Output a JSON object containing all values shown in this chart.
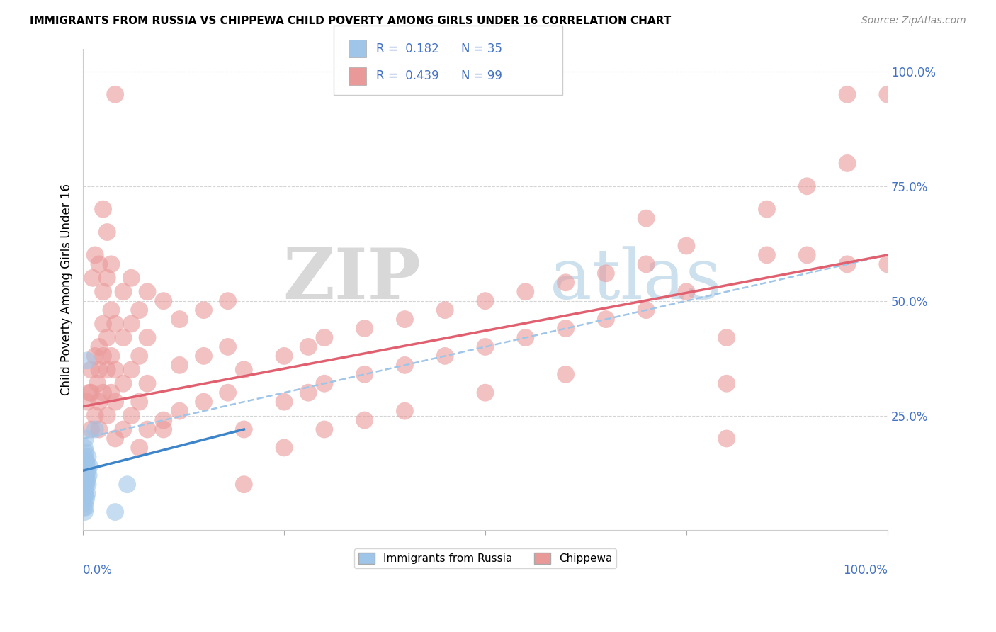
{
  "title": "IMMIGRANTS FROM RUSSIA VS CHIPPEWA CHILD POVERTY AMONG GIRLS UNDER 16 CORRELATION CHART",
  "source": "Source: ZipAtlas.com",
  "ylabel": "Child Poverty Among Girls Under 16",
  "ytick_labels": [
    "100.0%",
    "75.0%",
    "50.0%",
    "25.0%"
  ],
  "ytick_values": [
    1.0,
    0.75,
    0.5,
    0.25
  ],
  "watermark_zip": "ZIP",
  "watermark_atlas": "atlas",
  "blue_color": "#9fc5e8",
  "pink_color": "#ea9999",
  "blue_line_color": "#3d85c8",
  "pink_line_color": "#e06070",
  "dashed_line_color": "#9fc5e8",
  "blue_scatter": [
    [
      0.001,
      0.05
    ],
    [
      0.001,
      0.07
    ],
    [
      0.001,
      0.08
    ],
    [
      0.001,
      0.1
    ],
    [
      0.002,
      0.04
    ],
    [
      0.002,
      0.06
    ],
    [
      0.002,
      0.08
    ],
    [
      0.002,
      0.1
    ],
    [
      0.002,
      0.12
    ],
    [
      0.002,
      0.14
    ],
    [
      0.002,
      0.16
    ],
    [
      0.002,
      0.18
    ],
    [
      0.003,
      0.05
    ],
    [
      0.003,
      0.08
    ],
    [
      0.003,
      0.1
    ],
    [
      0.003,
      0.12
    ],
    [
      0.003,
      0.15
    ],
    [
      0.003,
      0.17
    ],
    [
      0.003,
      0.2
    ],
    [
      0.004,
      0.07
    ],
    [
      0.004,
      0.1
    ],
    [
      0.004,
      0.12
    ],
    [
      0.004,
      0.15
    ],
    [
      0.005,
      0.08
    ],
    [
      0.005,
      0.11
    ],
    [
      0.005,
      0.14
    ],
    [
      0.005,
      0.37
    ],
    [
      0.006,
      0.1
    ],
    [
      0.006,
      0.13
    ],
    [
      0.006,
      0.16
    ],
    [
      0.007,
      0.12
    ],
    [
      0.008,
      0.14
    ],
    [
      0.015,
      0.22
    ],
    [
      0.04,
      0.04
    ],
    [
      0.055,
      0.1
    ]
  ],
  "pink_scatter": [
    [
      0.005,
      0.28
    ],
    [
      0.008,
      0.3
    ],
    [
      0.01,
      0.22
    ],
    [
      0.01,
      0.3
    ],
    [
      0.01,
      0.35
    ],
    [
      0.012,
      0.55
    ],
    [
      0.015,
      0.25
    ],
    [
      0.015,
      0.38
    ],
    [
      0.015,
      0.6
    ],
    [
      0.018,
      0.32
    ],
    [
      0.02,
      0.22
    ],
    [
      0.02,
      0.28
    ],
    [
      0.02,
      0.35
    ],
    [
      0.02,
      0.4
    ],
    [
      0.02,
      0.58
    ],
    [
      0.025,
      0.3
    ],
    [
      0.025,
      0.38
    ],
    [
      0.025,
      0.45
    ],
    [
      0.025,
      0.52
    ],
    [
      0.025,
      0.7
    ],
    [
      0.03,
      0.25
    ],
    [
      0.03,
      0.35
    ],
    [
      0.03,
      0.42
    ],
    [
      0.03,
      0.55
    ],
    [
      0.03,
      0.65
    ],
    [
      0.035,
      0.3
    ],
    [
      0.035,
      0.38
    ],
    [
      0.035,
      0.48
    ],
    [
      0.035,
      0.58
    ],
    [
      0.04,
      0.2
    ],
    [
      0.04,
      0.28
    ],
    [
      0.04,
      0.35
    ],
    [
      0.04,
      0.45
    ],
    [
      0.04,
      0.95
    ],
    [
      0.05,
      0.22
    ],
    [
      0.05,
      0.32
    ],
    [
      0.05,
      0.42
    ],
    [
      0.05,
      0.52
    ],
    [
      0.06,
      0.25
    ],
    [
      0.06,
      0.35
    ],
    [
      0.06,
      0.45
    ],
    [
      0.06,
      0.55
    ],
    [
      0.07,
      0.18
    ],
    [
      0.07,
      0.28
    ],
    [
      0.07,
      0.38
    ],
    [
      0.07,
      0.48
    ],
    [
      0.08,
      0.22
    ],
    [
      0.08,
      0.32
    ],
    [
      0.08,
      0.42
    ],
    [
      0.08,
      0.52
    ],
    [
      0.1,
      0.24
    ],
    [
      0.1,
      0.22
    ],
    [
      0.1,
      0.5
    ],
    [
      0.12,
      0.26
    ],
    [
      0.12,
      0.36
    ],
    [
      0.12,
      0.46
    ],
    [
      0.15,
      0.28
    ],
    [
      0.15,
      0.38
    ],
    [
      0.15,
      0.48
    ],
    [
      0.18,
      0.3
    ],
    [
      0.18,
      0.4
    ],
    [
      0.18,
      0.5
    ],
    [
      0.2,
      0.35
    ],
    [
      0.2,
      0.22
    ],
    [
      0.2,
      0.1
    ],
    [
      0.25,
      0.38
    ],
    [
      0.25,
      0.28
    ],
    [
      0.25,
      0.18
    ],
    [
      0.28,
      0.4
    ],
    [
      0.28,
      0.3
    ],
    [
      0.3,
      0.42
    ],
    [
      0.3,
      0.32
    ],
    [
      0.3,
      0.22
    ],
    [
      0.35,
      0.44
    ],
    [
      0.35,
      0.34
    ],
    [
      0.35,
      0.24
    ],
    [
      0.4,
      0.46
    ],
    [
      0.4,
      0.36
    ],
    [
      0.4,
      0.26
    ],
    [
      0.45,
      0.48
    ],
    [
      0.45,
      0.38
    ],
    [
      0.5,
      0.5
    ],
    [
      0.5,
      0.4
    ],
    [
      0.5,
      0.3
    ],
    [
      0.55,
      0.52
    ],
    [
      0.55,
      0.42
    ],
    [
      0.6,
      0.54
    ],
    [
      0.6,
      0.44
    ],
    [
      0.6,
      0.34
    ],
    [
      0.65,
      0.56
    ],
    [
      0.65,
      0.46
    ],
    [
      0.7,
      0.68
    ],
    [
      0.7,
      0.58
    ],
    [
      0.7,
      0.48
    ],
    [
      0.75,
      0.62
    ],
    [
      0.75,
      0.52
    ],
    [
      0.8,
      0.2
    ],
    [
      0.8,
      0.32
    ],
    [
      0.8,
      0.42
    ],
    [
      0.85,
      0.7
    ],
    [
      0.85,
      0.6
    ],
    [
      0.9,
      0.75
    ],
    [
      0.9,
      0.6
    ],
    [
      0.95,
      0.8
    ],
    [
      0.95,
      0.95
    ],
    [
      0.95,
      0.58
    ],
    [
      1.0,
      0.58
    ],
    [
      1.0,
      0.95
    ]
  ],
  "pink_line_x0": 0.0,
  "pink_line_y0": 0.27,
  "pink_line_x1": 1.0,
  "pink_line_y1": 0.6,
  "blue_line_x0": 0.0,
  "blue_line_y0": 0.13,
  "blue_line_x1": 0.2,
  "blue_line_y1": 0.22,
  "dash_line_x0": 0.0,
  "dash_line_y0": 0.2,
  "dash_line_x1": 1.0,
  "dash_line_y1": 0.6,
  "xlim": [
    0,
    1.0
  ],
  "ylim": [
    0,
    1.05
  ],
  "background_color": "#ffffff",
  "grid_color": "#d0d0d0"
}
